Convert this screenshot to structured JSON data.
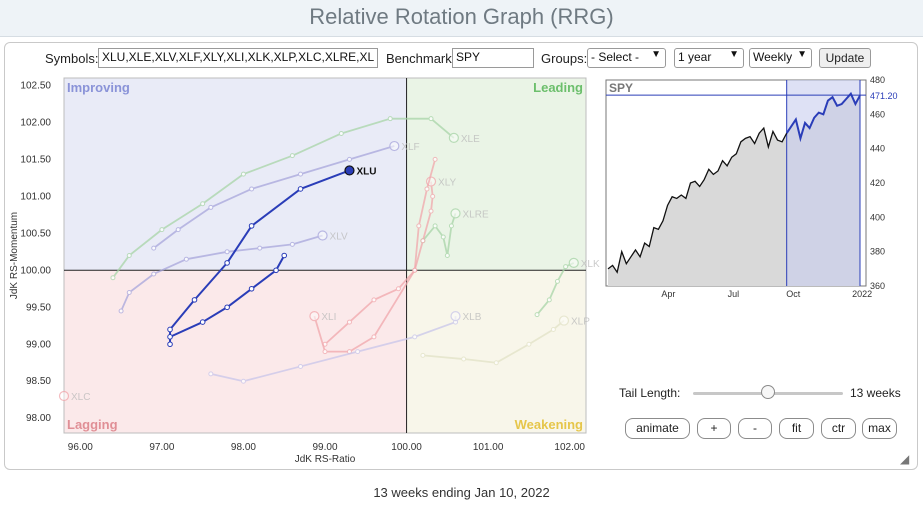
{
  "title": "Relative Rotation Graph (RRG)",
  "controls": {
    "symbols_label": "Symbols:",
    "symbols_value": "XLU,XLE,XLV,XLF,XLY,XLI,XLK,XLP,XLC,XLRE,XL",
    "benchmark_label": "Benchmark:",
    "benchmark_value": "SPY",
    "groups_label": "Groups:",
    "groups_value": "- Select -",
    "period_value": "1 year",
    "interval_value": "Weekly",
    "update_label": "Update"
  },
  "tail": {
    "label": "Tail Length:",
    "value_text": "13 weeks",
    "value": 13,
    "max": 26
  },
  "buttons": {
    "animate": "animate",
    "plus": "+",
    "minus": "-",
    "fit": "fit",
    "ctr": "ctr",
    "max": "max"
  },
  "footer": "13 weeks ending Jan 10, 2022",
  "colors": {
    "highlight": "#2a3db8",
    "improving": "#e9ebf7",
    "leading": "#eaf4e6",
    "lagging": "#fbe9ea",
    "weakening": "#f8f6ea"
  },
  "chart_data": [
    {
      "type": "scatter",
      "title": "",
      "xlabel": "JdK RS-Ratio",
      "ylabel": "JdK RS-Momentum",
      "xlim": [
        95.8,
        102.2
      ],
      "ylim": [
        97.8,
        102.6
      ],
      "xticks": [
        "96.00",
        "97.00",
        "98.00",
        "99.00",
        "100.00",
        "101.00",
        "102.00"
      ],
      "yticks": [
        "98.00",
        "98.50",
        "99.00",
        "99.50",
        "100.00",
        "100.50",
        "101.00",
        "101.50",
        "102.00",
        "102.50"
      ],
      "quadrants": {
        "improving": "Improving",
        "leading": "Leading",
        "lagging": "Lagging",
        "weakening": "Weakening"
      },
      "series": [
        {
          "name": "XLU",
          "highlight": true,
          "color": "#2a3db8",
          "points": [
            [
              98.5,
              100.2
            ],
            [
              98.4,
              100.0
            ],
            [
              98.1,
              99.75
            ],
            [
              97.8,
              99.5
            ],
            [
              97.5,
              99.3
            ],
            [
              97.1,
              99.1
            ],
            [
              97.1,
              99.0
            ],
            [
              97.1,
              99.2
            ],
            [
              97.4,
              99.6
            ],
            [
              97.8,
              100.1
            ],
            [
              98.1,
              100.6
            ],
            [
              98.7,
              101.1
            ],
            [
              99.3,
              101.35
            ]
          ]
        },
        {
          "name": "XLF",
          "color": "#a8a6dc",
          "points": [
            [
              96.9,
              100.3
            ],
            [
              97.2,
              100.55
            ],
            [
              97.6,
              100.85
            ],
            [
              98.1,
              101.1
            ],
            [
              98.7,
              101.3
            ],
            [
              99.3,
              101.5
            ],
            [
              99.85,
              101.68
            ]
          ]
        },
        {
          "name": "XLV",
          "color": "#a8a6dc",
          "points": [
            [
              96.5,
              99.45
            ],
            [
              96.6,
              99.7
            ],
            [
              96.9,
              99.95
            ],
            [
              97.3,
              100.15
            ],
            [
              97.8,
              100.25
            ],
            [
              98.2,
              100.3
            ],
            [
              98.6,
              100.35
            ],
            [
              98.97,
              100.47
            ]
          ]
        },
        {
          "name": "XLE",
          "color": "#a8d5a8",
          "points": [
            [
              96.4,
              99.9
            ],
            [
              96.6,
              100.2
            ],
            [
              97.0,
              100.55
            ],
            [
              97.5,
              100.9
            ],
            [
              98.0,
              101.3
            ],
            [
              98.6,
              101.55
            ],
            [
              99.2,
              101.85
            ],
            [
              99.8,
              102.05
            ],
            [
              100.3,
              102.05
            ],
            [
              100.58,
              101.79
            ]
          ]
        },
        {
          "name": "XLRE",
          "color": "#a8d5a8",
          "points": [
            [
              100.2,
              100.4
            ],
            [
              100.35,
              100.6
            ],
            [
              100.45,
              100.45
            ],
            [
              100.5,
              100.2
            ],
            [
              100.55,
              100.6
            ],
            [
              100.6,
              100.77
            ]
          ]
        },
        {
          "name": "XLK",
          "color": "#a8d5a8",
          "points": [
            [
              101.6,
              99.4
            ],
            [
              101.75,
              99.6
            ],
            [
              101.85,
              99.85
            ],
            [
              101.95,
              100.05
            ],
            [
              102.05,
              100.1
            ]
          ]
        },
        {
          "name": "XLP",
          "color": "#e2e2c6",
          "points": [
            [
              100.2,
              98.85
            ],
            [
              100.7,
              98.8
            ],
            [
              101.1,
              98.75
            ],
            [
              101.5,
              99.0
            ],
            [
              101.8,
              99.2
            ],
            [
              101.93,
              99.32
            ]
          ]
        },
        {
          "name": "XLY",
          "color": "#f1a7ac",
          "points": [
            [
              99.0,
              99.0
            ],
            [
              99.3,
              99.3
            ],
            [
              99.6,
              99.6
            ],
            [
              99.9,
              99.75
            ],
            [
              100.1,
              100.0
            ],
            [
              100.2,
              100.4
            ],
            [
              100.3,
              100.8
            ],
            [
              100.32,
              101.0
            ],
            [
              100.3,
              101.2
            ]
          ]
        },
        {
          "name": "XLI",
          "color": "#f1a7ac",
          "points": [
            [
              100.35,
              101.5
            ],
            [
              100.25,
              101.1
            ],
            [
              100.15,
              100.6
            ],
            [
              100.1,
              100.0
            ],
            [
              99.6,
              99.1
            ],
            [
              99.3,
              98.9
            ],
            [
              99.0,
              98.9
            ],
            [
              98.87,
              99.38
            ]
          ]
        },
        {
          "name": "XLC",
          "color": "#f1a7ac",
          "points": [
            [
              95.8,
              98.3
            ]
          ]
        },
        {
          "name": "XLB",
          "color": "#c9c6ea",
          "points": [
            [
              97.6,
              98.6
            ],
            [
              98.0,
              98.5
            ],
            [
              98.7,
              98.7
            ],
            [
              99.4,
              98.9
            ],
            [
              100.1,
              99.1
            ],
            [
              100.6,
              99.3
            ],
            [
              100.6,
              99.38
            ]
          ]
        }
      ]
    },
    {
      "type": "area",
      "title": "SPY",
      "xticks": [
        "Apr",
        "Jul",
        "Oct",
        "2022"
      ],
      "ylim": [
        360,
        480
      ],
      "yticks": [
        "360",
        "380",
        "400",
        "420",
        "440",
        "460",
        "480"
      ],
      "last_value": "471.20",
      "highlight_period": "Oct 2021 - Jan 2022",
      "values": [
        370,
        372,
        368,
        380,
        373,
        377,
        381,
        377,
        385,
        383,
        394,
        393,
        398,
        407,
        412,
        411,
        413,
        411,
        420,
        421,
        418,
        422,
        428,
        425,
        427,
        433,
        430,
        435,
        437,
        444,
        446,
        447,
        443,
        449,
        452,
        441,
        450,
        445,
        444,
        449,
        453,
        457,
        446,
        455,
        452,
        458,
        461,
        460,
        468,
        470,
        465,
        466,
        469,
        472,
        466,
        471
      ]
    }
  ]
}
